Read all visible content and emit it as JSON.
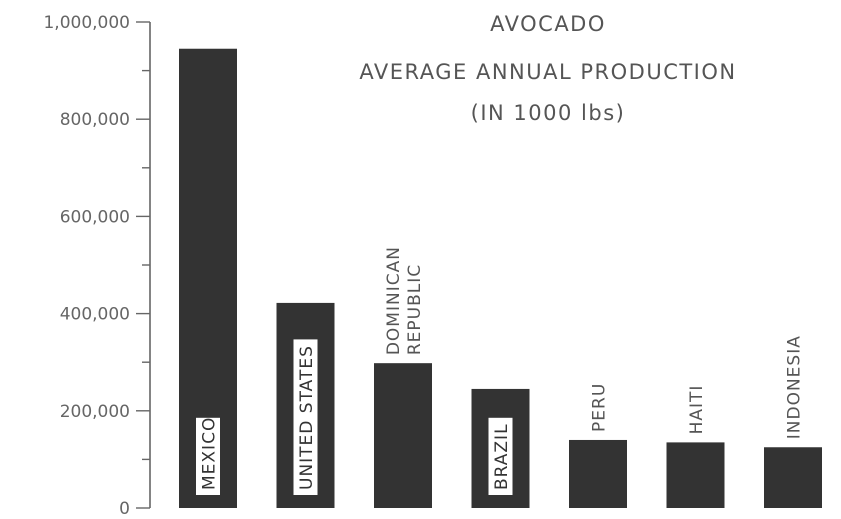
{
  "chart_data": {
    "type": "bar",
    "title": "AVOCADO",
    "subtitle": "AVERAGE ANNUAL PRODUCTION",
    "unit_note": "(IN 1000 lbs)",
    "xlabel": "",
    "ylabel": "",
    "ylim": [
      0,
      1000000
    ],
    "yticks": [
      0,
      200000,
      400000,
      600000,
      800000,
      1000000
    ],
    "ytick_labels": [
      "0",
      "200,000",
      "400,000",
      "600,000",
      "800,000",
      "1,000,000"
    ],
    "grid": false,
    "bar_color": "#333333",
    "text_color": "#555555",
    "categories": [
      {
        "label": [
          "MEXICO"
        ],
        "value": 945000,
        "label_style": "boxed"
      },
      {
        "label": [
          "UNITED STATES"
        ],
        "value": 422000,
        "label_style": "boxed"
      },
      {
        "label": [
          "DOMINICAN",
          "REPUBLIC"
        ],
        "value": 298000,
        "label_style": "above"
      },
      {
        "label": [
          "BRAZIL"
        ],
        "value": 245000,
        "label_style": "boxed"
      },
      {
        "label": [
          "PERU"
        ],
        "value": 140000,
        "label_style": "above"
      },
      {
        "label": [
          "HAITI"
        ],
        "value": 135000,
        "label_style": "above"
      },
      {
        "label": [
          "INDONESIA"
        ],
        "value": 125000,
        "label_style": "above"
      }
    ]
  }
}
